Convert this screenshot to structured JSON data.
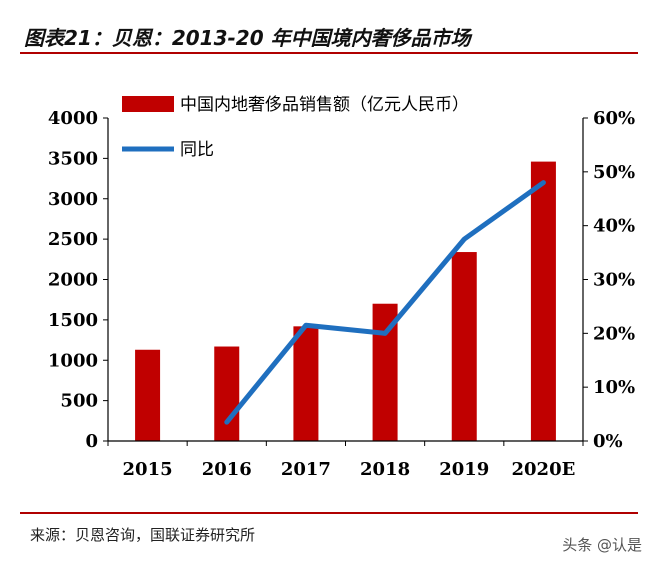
{
  "header": {
    "title": "图表21：贝恩：2013-20 年中国境内奢侈品市场"
  },
  "footer": {
    "source": "来源：贝恩咨询，国联证券研究所",
    "watermark": "头条 @认是"
  },
  "colors": {
    "bar": "#c00000",
    "line": "#1f6fbf",
    "accent": "#b00000"
  },
  "chart_data": {
    "type": "bar",
    "categories": [
      "2015",
      "2016",
      "2017",
      "2018",
      "2019",
      "2020E"
    ],
    "series": [
      {
        "name": "中国内地奢侈品销售额（亿元人民币）",
        "type": "bar",
        "axis": "left",
        "values": [
          1130,
          1170,
          1420,
          1700,
          2340,
          3460
        ]
      },
      {
        "name": "同比",
        "type": "line",
        "axis": "right",
        "values": [
          null,
          0.035,
          0.215,
          0.2,
          0.375,
          0.48
        ]
      }
    ],
    "y_left": {
      "lim": [
        0,
        4000
      ],
      "ticks": [
        0,
        500,
        1000,
        1500,
        2000,
        2500,
        3000,
        3500,
        4000
      ],
      "tick_labels": [
        "0",
        "500",
        "1000",
        "1500",
        "2000",
        "2500",
        "3000",
        "3500",
        "4000"
      ]
    },
    "y_right": {
      "lim": [
        0,
        0.6
      ],
      "ticks": [
        0,
        0.1,
        0.2,
        0.3,
        0.4,
        0.5,
        0.6
      ],
      "tick_labels": [
        "0%",
        "10%",
        "20%",
        "30%",
        "40%",
        "50%",
        "60%"
      ]
    },
    "grid": false,
    "legend": "top-left"
  }
}
